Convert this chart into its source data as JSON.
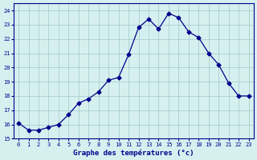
{
  "x": [
    0,
    1,
    2,
    3,
    4,
    5,
    6,
    7,
    8,
    9,
    10,
    11,
    12,
    13,
    14,
    15,
    16,
    17,
    18,
    19,
    20,
    21,
    22,
    23
  ],
  "y": [
    16.1,
    15.6,
    15.6,
    15.8,
    16.0,
    16.7,
    17.5,
    17.8,
    18.3,
    19.1,
    19.3,
    20.9,
    22.8,
    23.4,
    22.7,
    23.8,
    23.5,
    22.5,
    22.1,
    21.0,
    20.2,
    18.9,
    18.0,
    18.0
  ],
  "xlim": [
    -0.5,
    23.5
  ],
  "ylim": [
    15,
    24.5
  ],
  "yticks": [
    15,
    16,
    17,
    18,
    19,
    20,
    21,
    22,
    23,
    24
  ],
  "xticks": [
    0,
    1,
    2,
    3,
    4,
    5,
    6,
    7,
    8,
    9,
    10,
    11,
    12,
    13,
    14,
    15,
    16,
    17,
    18,
    19,
    20,
    21,
    22,
    23
  ],
  "xlabel": "Graphe des températures (°c)",
  "line_color": "#00008b",
  "marker": "D",
  "marker_size": 2.5,
  "bg_color": "#d6f0f0",
  "grid_color": "#a0c8c8",
  "axis_label_color": "#00008b",
  "tick_label_color": "#00008b"
}
